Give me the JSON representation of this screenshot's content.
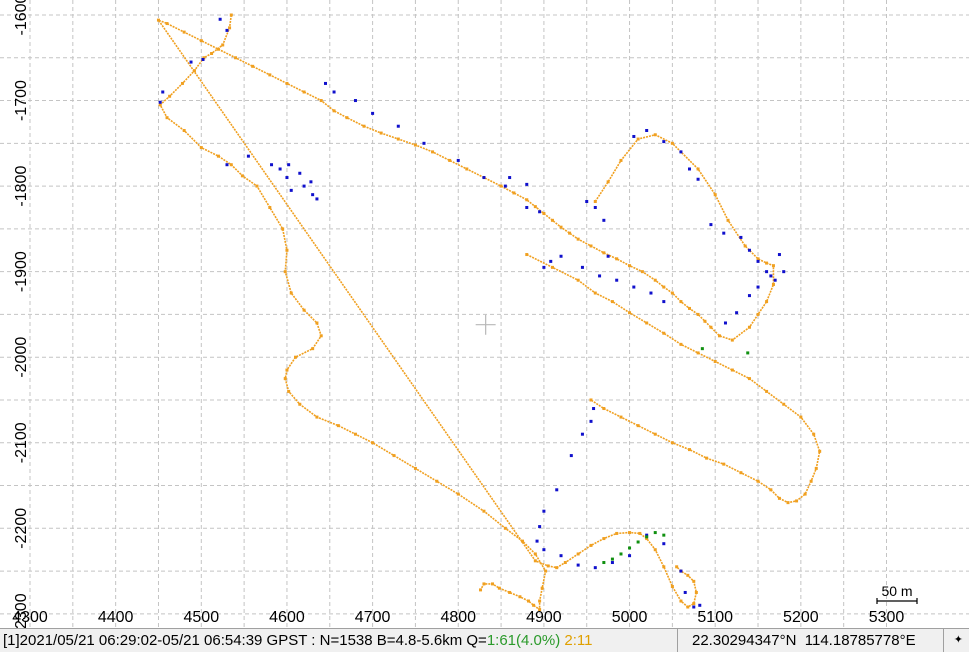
{
  "chart_data": {
    "type": "scatter",
    "title": "",
    "xlabel": "",
    "ylabel": "",
    "xlim": [
      4290,
      5360
    ],
    "ylim": [
      -2300,
      -1600
    ],
    "x_ticks": [
      "4300",
      "4400",
      "4500",
      "4600",
      "4700",
      "4800",
      "4900",
      "5000",
      "5100",
      "5200",
      "5300"
    ],
    "y_ticks": [
      "-1600",
      "-1700",
      "-1800",
      "-1900",
      "-2000",
      "-2100",
      "-2200",
      "-2300"
    ],
    "grid": true,
    "scale_bar": {
      "label": "50 m",
      "length_m": 50
    },
    "series": [
      {
        "quality": "float",
        "color": "#f0a020",
        "x": [
          4535,
          4533,
          4525,
          4512,
          4503,
          4492,
          4478,
          4463,
          4452,
          4460,
          4480,
          4500,
          4520,
          4535,
          4548,
          4565,
          4580,
          4595,
          4600,
          4598,
          4605,
          4620,
          4635,
          4640,
          4630,
          4610,
          4600,
          4598,
          4602,
          4615,
          4635,
          4660,
          4680,
          4700,
          4725,
          4750,
          4775,
          4800,
          4830,
          4855,
          4875,
          4890,
          4902,
          4898,
          4895,
          4895,
          4888,
          4882,
          4872,
          4860,
          4848,
          4840,
          4830,
          4826,
          4880,
          4910,
          4940,
          4960,
          4980,
          5000,
          5020,
          5040,
          5060,
          5080,
          5100,
          5120,
          5140,
          5160,
          5180,
          5200,
          5215,
          5222,
          5218,
          5212,
          5205,
          5195,
          5185,
          5175,
          5165,
          5150,
          5130,
          5110,
          5090,
          5070,
          5050,
          5030,
          5010,
          4990,
          4970,
          4955,
          4960,
          4975,
          4990,
          5010,
          5030,
          5050,
          5080,
          5100,
          5115,
          5135,
          5150,
          5160,
          5168,
          5168,
          5160,
          5150,
          5140,
          5120,
          5105,
          5095,
          5088,
          5080,
          5070,
          5060,
          5050,
          5040,
          5030,
          5015,
          5000,
          4985,
          4970,
          4955,
          4940,
          4930,
          4920,
          4910,
          4900,
          4890,
          4880,
          4865,
          4850,
          4830,
          4810,
          4790,
          4770,
          4750,
          4730,
          4710,
          4690,
          4670,
          4655,
          4640,
          4620,
          4600,
          4580,
          4560,
          4540,
          4520,
          4500,
          4480,
          4460,
          4450,
          4890,
          4905,
          4915,
          4925,
          4940,
          4955,
          4970,
          4985,
          5000,
          5012,
          5020,
          5030,
          5040,
          5050,
          5060,
          5068,
          5075,
          5078,
          5075,
          5068,
          5060,
          5055
        ],
        "y": [
          -1600,
          -1615,
          -1635,
          -1645,
          -1650,
          -1665,
          -1680,
          -1695,
          -1705,
          -1720,
          -1735,
          -1755,
          -1765,
          -1775,
          -1788,
          -1800,
          -1825,
          -1850,
          -1875,
          -1900,
          -1925,
          -1945,
          -1960,
          -1975,
          -1990,
          -2000,
          -2015,
          -2025,
          -2040,
          -2055,
          -2070,
          -2080,
          -2090,
          -2100,
          -2115,
          -2130,
          -2145,
          -2160,
          -2180,
          -2200,
          -2215,
          -2230,
          -2250,
          -2270,
          -2285,
          -2295,
          -2290,
          -2285,
          -2280,
          -2275,
          -2270,
          -2265,
          -2265,
          -2272,
          -1880,
          -1895,
          -1910,
          -1925,
          -1935,
          -1948,
          -1960,
          -1972,
          -1985,
          -1995,
          -2005,
          -2015,
          -2025,
          -2040,
          -2055,
          -2070,
          -2090,
          -2110,
          -2130,
          -2145,
          -2160,
          -2168,
          -2170,
          -2165,
          -2155,
          -2145,
          -2135,
          -2125,
          -2118,
          -2108,
          -2100,
          -2090,
          -2080,
          -2070,
          -2060,
          -2050,
          -1818,
          -1795,
          -1770,
          -1745,
          -1740,
          -1750,
          -1780,
          -1810,
          -1840,
          -1870,
          -1885,
          -1890,
          -1893,
          -1915,
          -1935,
          -1950,
          -1965,
          -1980,
          -1975,
          -1965,
          -1958,
          -1950,
          -1943,
          -1935,
          -1925,
          -1918,
          -1910,
          -1900,
          -1893,
          -1885,
          -1878,
          -1870,
          -1862,
          -1855,
          -1848,
          -1840,
          -1832,
          -1824,
          -1816,
          -1808,
          -1800,
          -1790,
          -1780,
          -1770,
          -1760,
          -1752,
          -1745,
          -1738,
          -1730,
          -1720,
          -1712,
          -1700,
          -1690,
          -1680,
          -1670,
          -1660,
          -1650,
          -1640,
          -1630,
          -1620,
          -1610,
          -1606,
          -2238,
          -2244,
          -2246,
          -2240,
          -2230,
          -2220,
          -2212,
          -2206,
          -2205,
          -2206,
          -2212,
          -2225,
          -2245,
          -2268,
          -2285,
          -2292,
          -2288,
          -2275,
          -2262,
          -2255,
          -2250,
          -2245
        ]
      },
      {
        "quality": "single",
        "color": "#1010cc",
        "x": [
          4522,
          4530,
          4502,
          4488,
          4455,
          4452,
          4530,
          4555,
          4582,
          4592,
          4600,
          4605,
          4620,
          4630,
          4635,
          4628,
          4615,
          4602,
          4645,
          4655,
          4680,
          4700,
          4730,
          4760,
          4800,
          4830,
          4855,
          4880,
          4895,
          4958,
          4955,
          4945,
          4932,
          4915,
          4900,
          4895,
          4892,
          4900,
          4920,
          4940,
          4960,
          4980,
          5000,
          5020,
          5040,
          5060,
          5075,
          5082,
          5065,
          5095,
          5110,
          5130,
          5140,
          5150,
          5160,
          5170,
          5180,
          5175,
          5165,
          5150,
          5140,
          5125,
          5112,
          4970,
          4960,
          4950,
          5005,
          5020,
          5040,
          5060,
          5070,
          5080,
          4900,
          4908,
          4920,
          4945,
          4965,
          4985,
          5005,
          5025,
          5040,
          4975,
          4880,
          4860
        ],
        "y": [
          -1605,
          -1618,
          -1652,
          -1655,
          -1690,
          -1702,
          -1775,
          -1765,
          -1775,
          -1780,
          -1790,
          -1805,
          -1800,
          -1810,
          -1815,
          -1795,
          -1785,
          -1775,
          -1680,
          -1690,
          -1700,
          -1715,
          -1730,
          -1750,
          -1770,
          -1790,
          -1800,
          -1825,
          -1830,
          -2060,
          -2075,
          -2090,
          -2115,
          -2155,
          -2180,
          -2198,
          -2215,
          -2225,
          -2232,
          -2243,
          -2246,
          -2240,
          -2232,
          -2208,
          -2218,
          -2250,
          -2292,
          -2290,
          -2275,
          -1845,
          -1855,
          -1860,
          -1875,
          -1888,
          -1900,
          -1910,
          -1900,
          -1880,
          -1905,
          -1918,
          -1928,
          -1948,
          -1960,
          -1840,
          -1825,
          -1818,
          -1742,
          -1735,
          -1748,
          -1760,
          -1780,
          -1792,
          -1895,
          -1888,
          -1882,
          -1895,
          -1905,
          -1910,
          -1918,
          -1925,
          -1935,
          -1882,
          -1798,
          -1790
        ]
      },
      {
        "quality": "fix",
        "color": "#109010",
        "x": [
          4970,
          4980,
          4990,
          5000,
          5010,
          5020,
          5030,
          5040,
          5085,
          5138
        ],
        "y": [
          -2240,
          -2236,
          -2230,
          -2223,
          -2216,
          -2210,
          -2205,
          -2208,
          -1990,
          -1995
        ]
      }
    ]
  },
  "crosshair": {
    "x": 4832,
    "y": -1962
  },
  "status": {
    "prefix": "[1]2021/05/21 06:29:02-05/21 06:54:39 GPST : N=1538 B=4.8-5.6km Q=",
    "q1": "1:61(4.0%)",
    "q2": "2:11",
    "latitude": "22.30294347°N",
    "longitude": "114.18785778°E",
    "grip_icon": "✦"
  }
}
